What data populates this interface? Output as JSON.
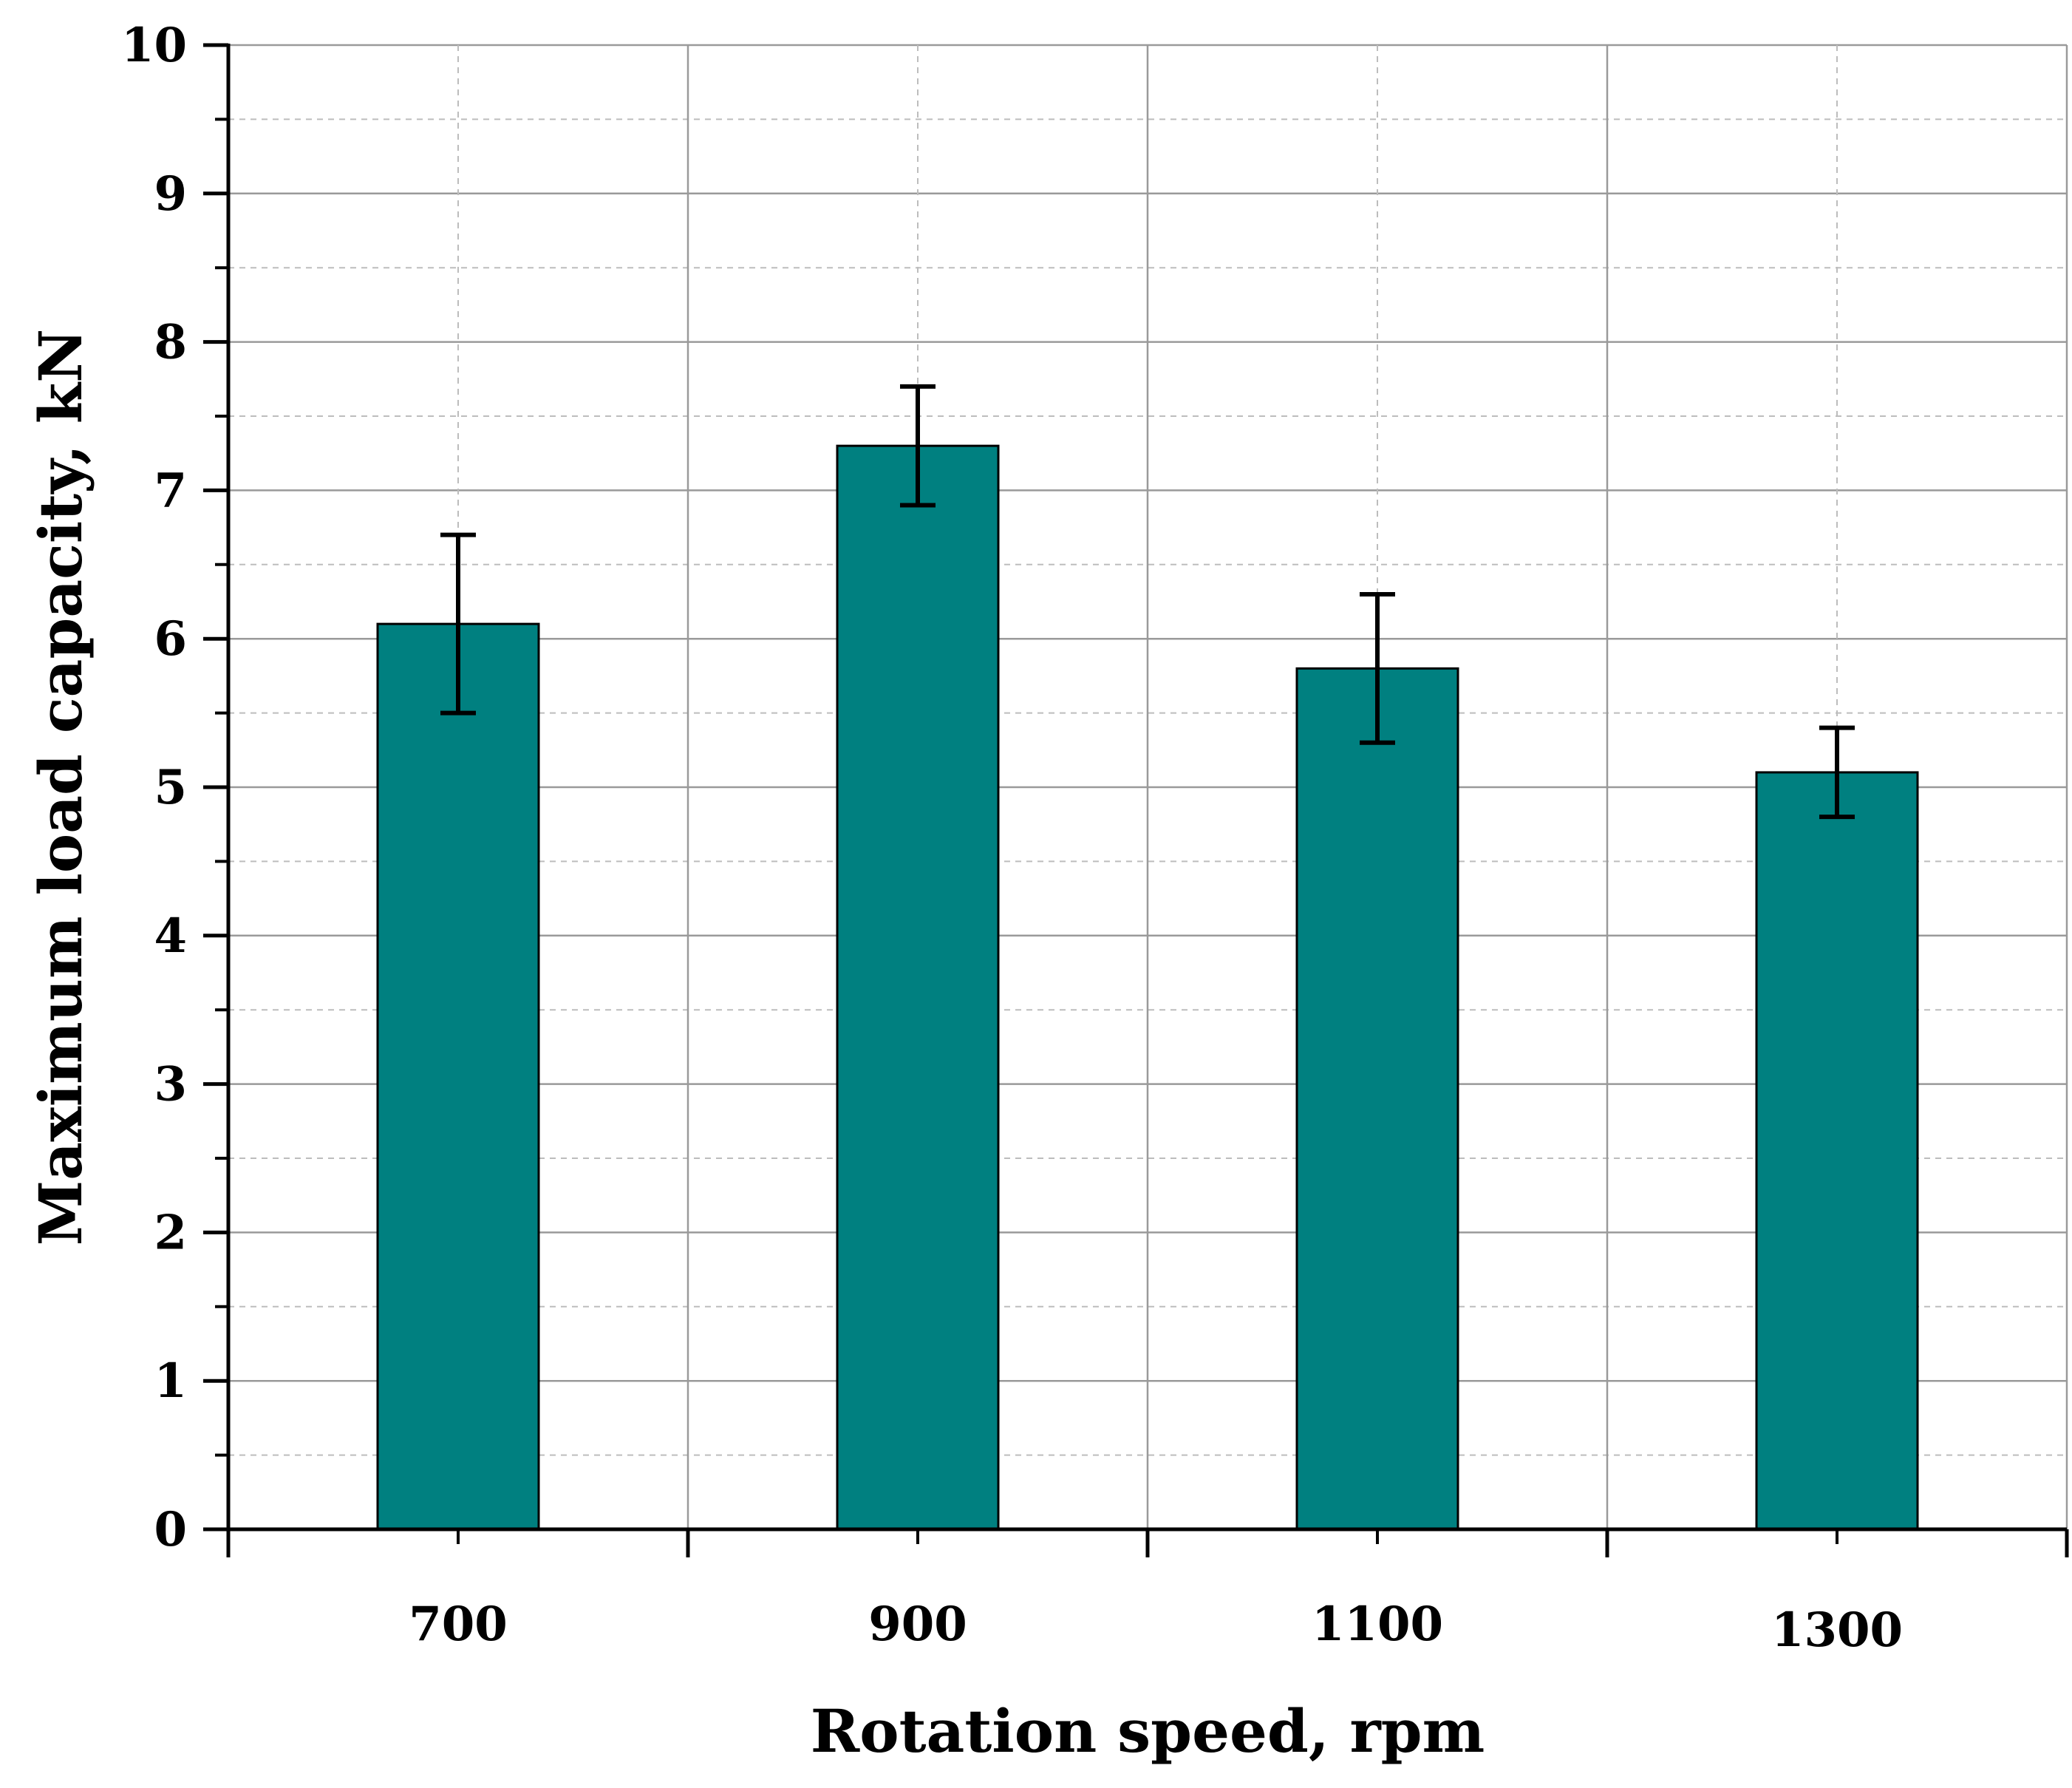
{
  "chart_data": {
    "type": "bar",
    "title": "",
    "xlabel": "Rotation speed, rpm",
    "ylabel": "Maximum load capacity, kN",
    "categories": [
      "700",
      "900",
      "1100",
      "1300"
    ],
    "values": [
      6.1,
      7.3,
      5.8,
      5.1
    ],
    "errors": [
      0.6,
      0.4,
      0.5,
      0.3
    ],
    "ylim": [
      0,
      10
    ],
    "yticks": [
      "0",
      "1",
      "2",
      "3",
      "4",
      "5",
      "6",
      "7",
      "8",
      "9",
      "10"
    ],
    "grid": true,
    "bar_color": "#008080",
    "error_bar_color": "#000000"
  }
}
